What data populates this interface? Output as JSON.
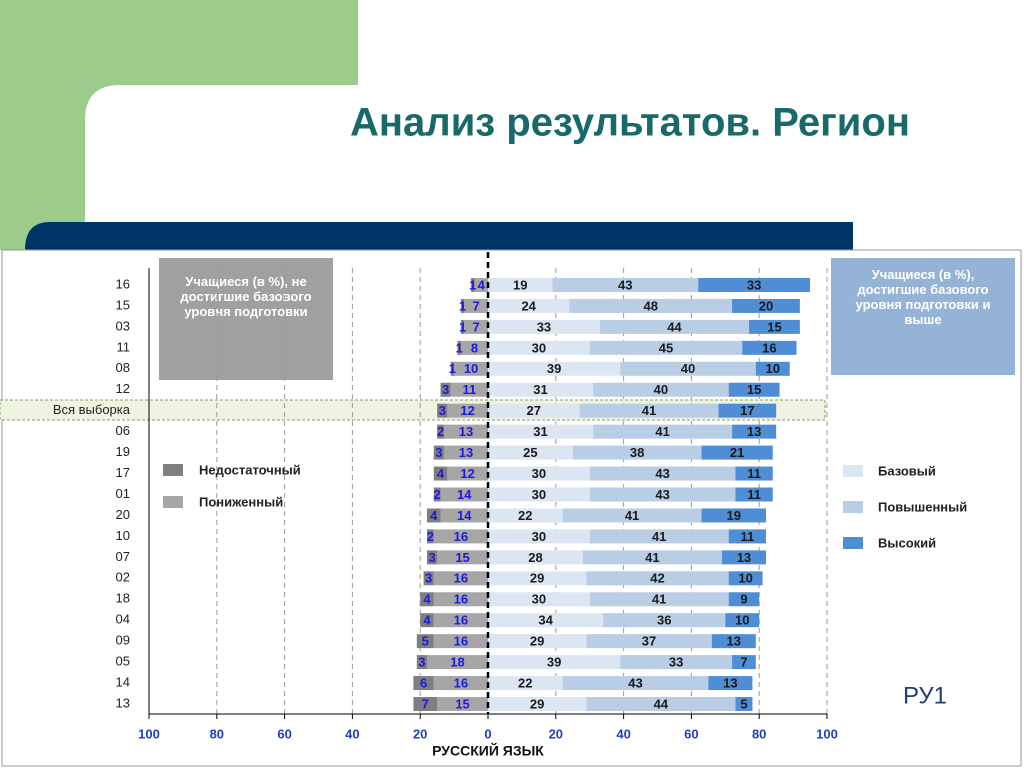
{
  "chart_data": {
    "type": "diverging_stacked_bar",
    "title": "Анализ результатов. Регион",
    "x_label": "РУССКИЙ ЯЗЫК",
    "corner_label": "РУ1",
    "left_box": "Учащиеся (в %), не достигшие базового уровня подготовки",
    "right_box": "Учащиеся (в %), достигшие базового уровня подготовки и выше",
    "categories": [
      "16",
      "15",
      "03",
      "11",
      "08",
      "12",
      "Вся выборка",
      "06",
      "19",
      "17",
      "01",
      "20",
      "10",
      "07",
      "02",
      "18",
      "04",
      "09",
      "05",
      "14",
      "13"
    ],
    "xlim": [
      -100,
      100
    ],
    "xticks": [
      {
        "value": -100,
        "label": "100"
      },
      {
        "value": -80,
        "label": "80"
      },
      {
        "value": -60,
        "label": "60"
      },
      {
        "value": -40,
        "label": "40"
      },
      {
        "value": -20,
        "label": "20"
      },
      0,
      20,
      40,
      60,
      80,
      100
    ],
    "grid": true,
    "series": [
      {
        "name": "Недостаточный",
        "color": "#7f7f7f",
        "values": [
          -1,
          -1,
          -1,
          -1,
          -1,
          -3,
          -3,
          -2,
          -3,
          -4,
          -2,
          -4,
          -2,
          -3,
          -3,
          -4,
          -4,
          -5,
          -3,
          -6,
          -7
        ],
        "value_labels": [
          "1",
          "1",
          "1",
          "1",
          "1",
          "3",
          "3",
          "2",
          "3",
          "4",
          "2",
          "4",
          "2",
          "3",
          "3",
          "4",
          "4",
          "5",
          "3",
          "6",
          "7"
        ]
      },
      {
        "name": "Пониженный",
        "color": "#a6a6a6",
        "values": [
          -4,
          -7,
          -7,
          -8,
          -10,
          -11,
          -12,
          -13,
          -13,
          -12,
          -14,
          -14,
          -16,
          -15,
          -16,
          -16,
          -16,
          -16,
          -18,
          -16,
          -15
        ],
        "value_labels": [
          "4",
          "7",
          "7",
          "8",
          "10",
          "11",
          "12",
          "13",
          "13",
          "12",
          "14",
          "14",
          "16",
          "15",
          "16",
          "16",
          "16",
          "16",
          "18",
          "16",
          "15"
        ]
      },
      {
        "name": "Базовый",
        "color": "#dce6f2",
        "values": [
          19,
          24,
          33,
          30,
          39,
          31,
          27,
          31,
          25,
          30,
          30,
          22,
          30,
          28,
          29,
          30,
          34,
          29,
          39,
          22,
          29
        ]
      },
      {
        "name": "Повышенный",
        "color": "#b9cde5",
        "values": [
          43,
          48,
          44,
          45,
          40,
          40,
          41,
          41,
          38,
          43,
          43,
          41,
          41,
          41,
          42,
          41,
          36,
          37,
          33,
          43,
          44
        ]
      },
      {
        "name": "Высокий",
        "color": "#4f8ed4",
        "values": [
          33,
          20,
          15,
          16,
          10,
          15,
          17,
          13,
          21,
          11,
          11,
          19,
          11,
          13,
          10,
          9,
          10,
          13,
          7,
          13,
          5
        ]
      }
    ]
  }
}
